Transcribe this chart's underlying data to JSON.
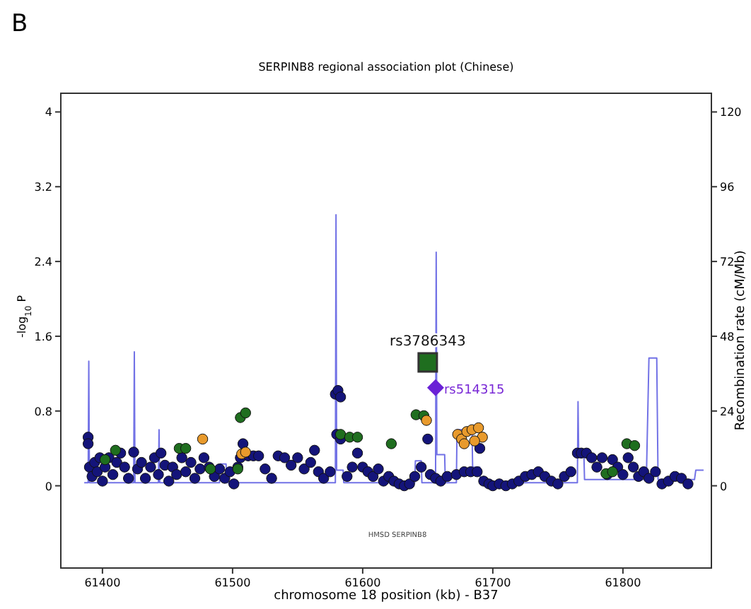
{
  "chart_data": {
    "type": "scatter",
    "title": "SERPINB8 regional association plot (Chinese)",
    "xlabel": "chromosome 18 position (kb) - B37",
    "ylabel": "-log$_{10}$ P",
    "y2label": "Recombination rate (cM/Mb)",
    "xlim": [
      61368,
      61868
    ],
    "xticks": [
      61400,
      61500,
      61600,
      61700,
      61800
    ],
    "ylim": [
      -0.88,
      4.2
    ],
    "yticks": [
      0,
      0.8,
      1.6,
      2.4,
      3.2,
      4
    ],
    "y2lim": [
      -26.4,
      126
    ],
    "y2ticks": [
      0,
      24,
      48,
      72,
      96,
      120
    ],
    "grid": false,
    "annotations": [
      "B",
      {
        "text": "rs3786343",
        "x": 61650,
        "y": 1.32
      },
      {
        "text": "rs514315",
        "x": 61656,
        "y": 1.05
      },
      "HMSD SERPINB8"
    ],
    "series": [
      {
        "type": "line",
        "axis": "y2",
        "color": "#7272e6",
        "marker": "none",
        "x": [
          61386,
          61389,
          61389.5,
          61390,
          61424,
          61424.5,
          61425,
          61443,
          61443.5,
          61444,
          61490,
          61490.5,
          61495,
          61495.5,
          61579,
          61579.5,
          61580,
          61585,
          61585.5,
          61640,
          61640.5,
          61645,
          61645.5,
          61656,
          61656.5,
          61657,
          61663,
          61663.5,
          61672,
          61672.5,
          61680,
          61684,
          61684.5,
          61690,
          61690.5,
          61765,
          61765.5,
          61766,
          61770,
          61770.5,
          61818,
          61820,
          61826,
          61827,
          61855,
          61856,
          61862
        ],
        "values": [
          1,
          1,
          40,
          1,
          1,
          43,
          1,
          1,
          18,
          1,
          1,
          7,
          7,
          1,
          1,
          87,
          5,
          5,
          1,
          1,
          8,
          8,
          1,
          1,
          75,
          10,
          10,
          1,
          1,
          18,
          18,
          18,
          6,
          6,
          1,
          1,
          27,
          10,
          10,
          2,
          2,
          41,
          41,
          2,
          2,
          5,
          5
        ]
      },
      {
        "color": "#14147a",
        "marker": "circle",
        "x": [
          61389,
          61389,
          61390,
          61392,
          61394,
          61396,
          61398,
          61400,
          61402,
          61405,
          61408,
          61411,
          61414,
          61417,
          61420,
          61424,
          61427,
          61430,
          61433,
          61437,
          61440,
          61443,
          61445,
          61448,
          61451,
          61454,
          61457,
          61461,
          61464,
          61468,
          61471,
          61475,
          61478,
          61482,
          61486,
          61490,
          61494,
          61498,
          61501,
          61504,
          61506,
          61508,
          61512,
          61516,
          61520,
          61525,
          61530,
          61535,
          61540,
          61545,
          61550,
          61555,
          61560,
          61563,
          61566,
          61570,
          61575,
          61579,
          61581,
          61583,
          61580,
          61583,
          61588,
          61592,
          61596,
          61600,
          61604,
          61608,
          61612,
          61616,
          61620,
          61624,
          61628,
          61632,
          61636,
          61640,
          61645,
          61650,
          61652,
          61656,
          61660,
          61665,
          61672,
          61678,
          61683,
          61688,
          61690,
          61693,
          61697,
          61700,
          61705,
          61710,
          61715,
          61720,
          61725,
          61730,
          61735,
          61740,
          61745,
          61750,
          61755,
          61760,
          61765,
          61768,
          61772,
          61776,
          61780,
          61784,
          61788,
          61792,
          61796,
          61800,
          61804,
          61808,
          61812,
          61816,
          61820,
          61825,
          61830,
          61835,
          61840,
          61845,
          61850
        ],
        "values": [
          0.52,
          0.45,
          0.2,
          0.1,
          0.25,
          0.15,
          0.3,
          0.05,
          0.2,
          0.3,
          0.12,
          0.25,
          0.35,
          0.2,
          0.08,
          0.36,
          0.18,
          0.25,
          0.08,
          0.2,
          0.3,
          0.12,
          0.35,
          0.22,
          0.05,
          0.2,
          0.12,
          0.3,
          0.15,
          0.25,
          0.08,
          0.18,
          0.3,
          0.2,
          0.1,
          0.18,
          0.08,
          0.15,
          0.02,
          0.2,
          0.3,
          0.45,
          0.32,
          0.32,
          0.32,
          0.18,
          0.08,
          0.32,
          0.3,
          0.22,
          0.3,
          0.18,
          0.25,
          0.38,
          0.15,
          0.08,
          0.15,
          0.98,
          1.02,
          0.95,
          0.55,
          0.5,
          0.1,
          0.2,
          0.35,
          0.2,
          0.15,
          0.1,
          0.18,
          0.05,
          0.1,
          0.05,
          0.02,
          0,
          0.02,
          0.1,
          0.2,
          0.5,
          0.12,
          0.08,
          0.05,
          0.1,
          0.12,
          0.15,
          0.15,
          0.15,
          0.4,
          0.05,
          0.02,
          0,
          0.02,
          0,
          0.02,
          0.05,
          0.1,
          0.12,
          0.15,
          0.1,
          0.05,
          0.02,
          0.1,
          0.15,
          0.35,
          0.35,
          0.35,
          0.3,
          0.2,
          0.3,
          0.12,
          0.28,
          0.2,
          0.12,
          0.3,
          0.2,
          0.1,
          0.15,
          0.08,
          0.15,
          0.02,
          0.05,
          0.1,
          0.08,
          0.02
        ]
      },
      {
        "color": "#1f6e1f",
        "marker": "circle",
        "x": [
          61402,
          61410,
          61459,
          61464,
          61483,
          61506,
          61510,
          61504,
          61583,
          61590,
          61596,
          61622,
          61641,
          61647,
          61787,
          61792,
          61803,
          61809
        ],
        "values": [
          0.28,
          0.38,
          0.4,
          0.4,
          0.18,
          0.73,
          0.78,
          0.18,
          0.55,
          0.52,
          0.52,
          0.45,
          0.76,
          0.75,
          0.13,
          0.15,
          0.45,
          0.43
        ]
      },
      {
        "color": "#e89a2c",
        "marker": "circle",
        "x": [
          61477,
          61507,
          61510,
          61649,
          61673,
          61676,
          61680,
          61684,
          61689,
          61692,
          61678,
          61686
        ],
        "values": [
          0.5,
          0.34,
          0.36,
          0.7,
          0.55,
          0.5,
          0.58,
          0.6,
          0.62,
          0.52,
          0.45,
          0.48
        ]
      },
      {
        "color": "#1f6e1f",
        "marker": "square",
        "x": [
          61650
        ],
        "values": [
          1.32
        ]
      },
      {
        "color": "#6a22d6",
        "marker": "diamond",
        "x": [
          61656
        ],
        "values": [
          1.05
        ]
      }
    ]
  }
}
